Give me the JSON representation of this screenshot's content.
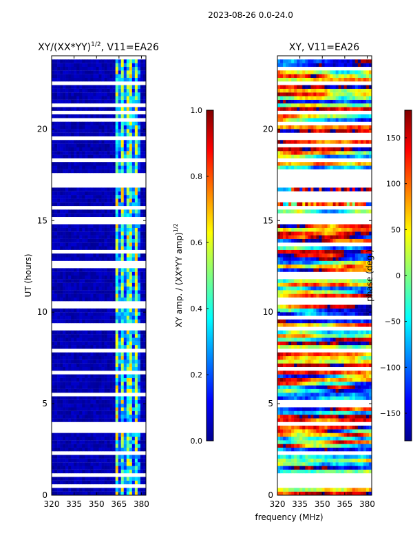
{
  "suptitle": "2023-08-26 0.0-24.0",
  "xlabel_shared": "frequency (MHz)",
  "chart_data": [
    {
      "type": "heatmap",
      "title_main": "XY/(XX*YY)",
      "title_sup": "1/2",
      "title_tail": ", V11=EA26",
      "ylabel": "UT (hours)",
      "xlim": [
        320,
        383
      ],
      "ylim": [
        0,
        24
      ],
      "xticks": [
        "320",
        "335",
        "350",
        "365",
        "380"
      ],
      "xtick_values": [
        320,
        335,
        350,
        365,
        380
      ],
      "yticks": [
        "0",
        "5",
        "10",
        "15",
        "20"
      ],
      "ytick_values": [
        0,
        5,
        10,
        15,
        20
      ],
      "colorbar": {
        "label": "XY amp. / (XX*YY amp)",
        "label_sup": "1/2",
        "range": [
          0.0,
          1.0
        ],
        "ticks": [
          "0.0",
          "0.2",
          "0.4",
          "0.6",
          "0.8",
          "1.0"
        ],
        "tick_values": [
          0.0,
          0.2,
          0.4,
          0.6,
          0.8,
          1.0
        ],
        "colormap": "jet"
      }
    },
    {
      "type": "heatmap",
      "title": "XY, V11=EA26",
      "xlim": [
        320,
        383
      ],
      "ylim": [
        0,
        24
      ],
      "xticks": [
        "320",
        "335",
        "350",
        "365",
        "380"
      ],
      "xtick_values": [
        320,
        335,
        350,
        365,
        380
      ],
      "yticks": [
        "0",
        "5",
        "10",
        "15",
        "20"
      ],
      "ytick_values": [
        0,
        5,
        10,
        15,
        20
      ],
      "colorbar": {
        "label": "phase (deg.)",
        "range": [
          -180,
          180
        ],
        "ticks": [
          "−150",
          "−100",
          "−50",
          "0",
          "50",
          "100",
          "150"
        ],
        "tick_values": [
          -150,
          -100,
          -50,
          0,
          50,
          100,
          150
        ],
        "colormap": "jet"
      }
    }
  ]
}
